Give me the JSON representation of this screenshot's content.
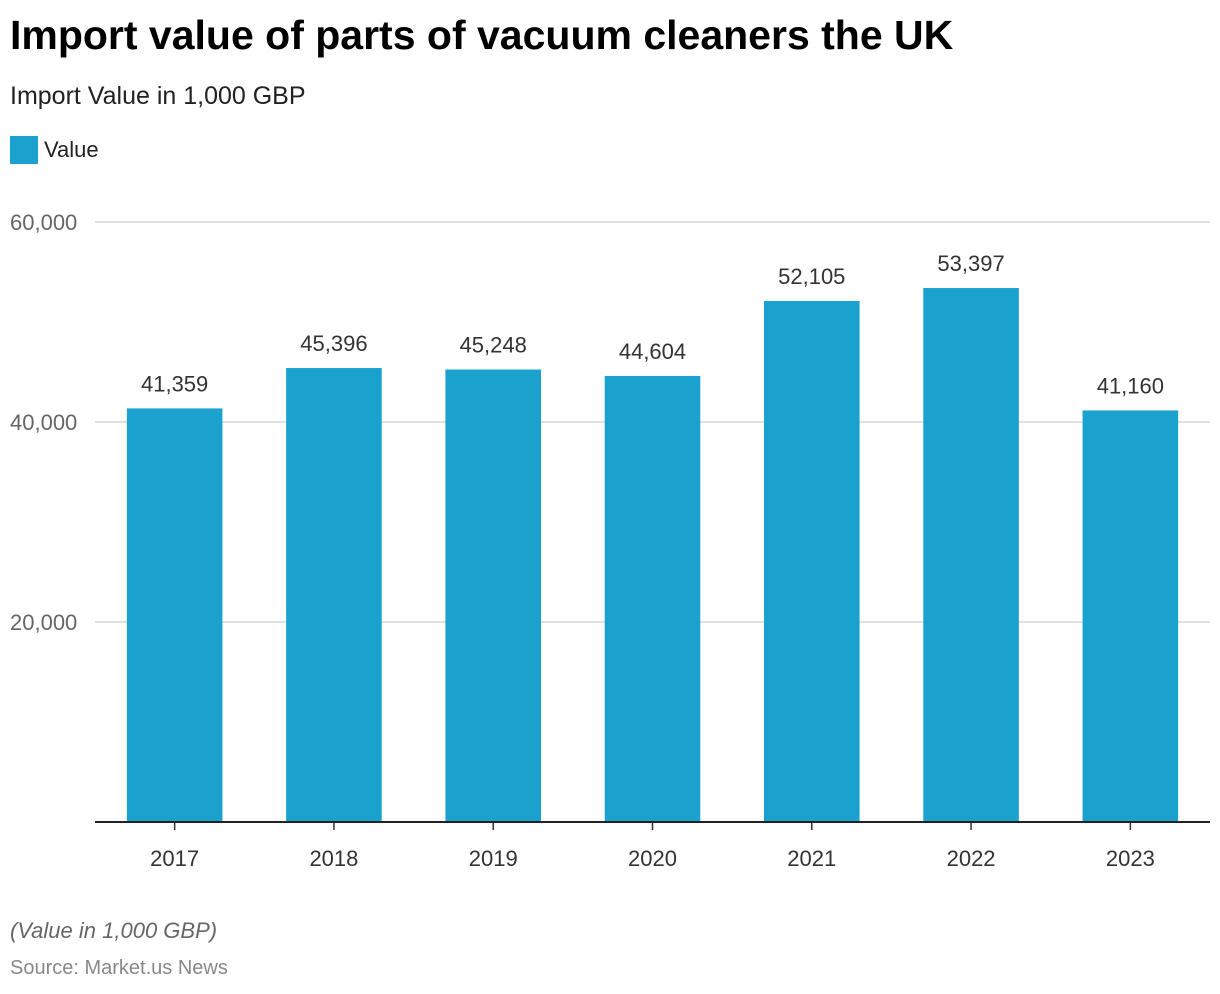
{
  "chart_data": {
    "type": "bar",
    "title": "Import value of parts of vacuum cleaners the UK",
    "subtitle": "Import Value in 1,000 GBP",
    "categories": [
      "2017",
      "2018",
      "2019",
      "2020",
      "2021",
      "2022",
      "2023"
    ],
    "series": [
      {
        "name": "Value",
        "color": "#1aa1cd",
        "values": [
          41359,
          45396,
          45248,
          44604,
          52105,
          53397,
          41160
        ],
        "labels": [
          "41,359",
          "45,396",
          "45,248",
          "44,604",
          "52,105",
          "53,397",
          "41,160"
        ]
      }
    ],
    "ylim": [
      0,
      60000
    ],
    "yticks": [
      20000,
      40000,
      60000
    ],
    "ytick_labels": [
      "20,000",
      "40,000",
      "60,000"
    ],
    "grid": true,
    "legend_position": "top-left",
    "note": "(Value in 1,000 GBP)",
    "source": "Source: Market.us News"
  }
}
